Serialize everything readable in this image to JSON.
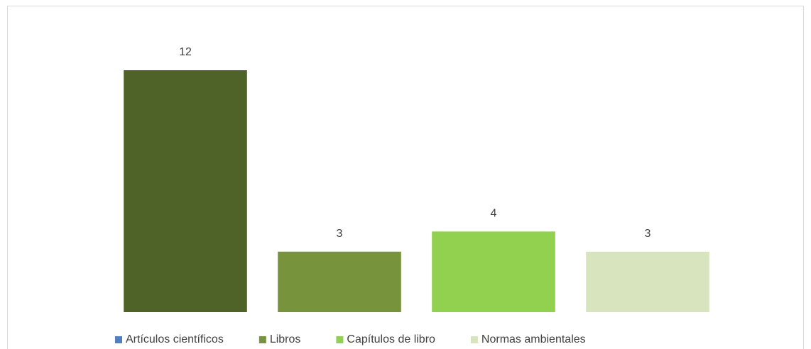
{
  "chart_data": {
    "type": "bar",
    "categories": [
      "Artículos científicos",
      "Libros",
      "Capítulos de libro",
      "Normas ambientales"
    ],
    "values": [
      12,
      3,
      4,
      3
    ],
    "colors": [
      "#4f6228",
      "#77933c",
      "#92d050",
      "#d7e4bd"
    ],
    "legend_colors": [
      "#4f81bd",
      "#77933c",
      "#92d050",
      "#d7e4bd"
    ],
    "legend": "bottom"
  }
}
